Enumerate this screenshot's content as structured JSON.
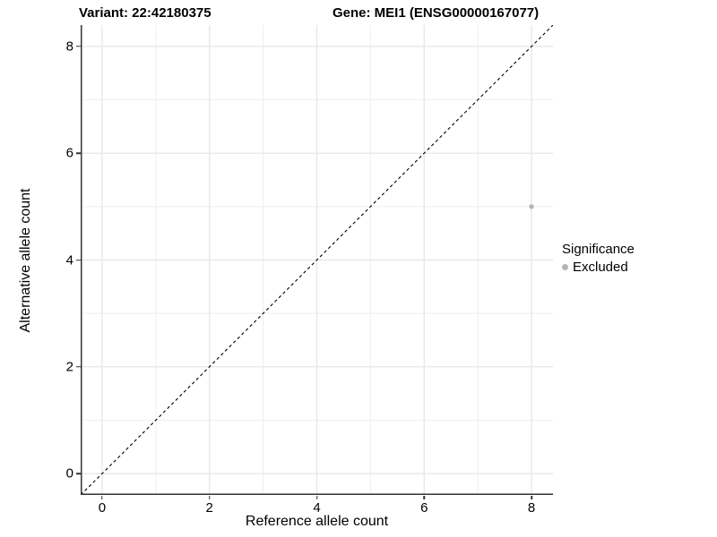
{
  "titles": {
    "variant": "Variant: 22:42180375",
    "gene": "Gene: MEI1 (ENSG00000167077)"
  },
  "legend": {
    "title": "Significance",
    "position": "right",
    "items": [
      {
        "label": "Excluded",
        "color": "#b5b5b5",
        "shape": "circle"
      }
    ]
  },
  "chart_data": {
    "type": "scatter",
    "title": "Variant: 22:42180375 | Gene: MEI1 (ENSG00000167077)",
    "xlabel": "Reference allele count",
    "ylabel": "Alternative allele count",
    "xlim": [
      -0.4,
      8.4
    ],
    "ylim": [
      -0.4,
      8.4
    ],
    "x_ticks": [
      0,
      2,
      4,
      6,
      8
    ],
    "y_ticks": [
      0,
      2,
      4,
      6,
      8
    ],
    "grid": {
      "major": [
        0,
        2,
        4,
        6,
        8
      ],
      "minor": [
        1,
        3,
        5,
        7
      ],
      "major_color": "#e5e5e5",
      "minor_color": "#efefef",
      "visible": true
    },
    "series": [
      {
        "name": "Excluded",
        "color": "#b5b5b5",
        "point_radius": 2.7,
        "points": [
          {
            "x": 8,
            "y": 5
          }
        ]
      }
    ],
    "reference_line": {
      "kind": "identity",
      "equation": "y = x",
      "style": "dashed",
      "color": "#000000"
    },
    "axis_color": "#333333",
    "background": "#ffffff",
    "legend_position": "right"
  }
}
